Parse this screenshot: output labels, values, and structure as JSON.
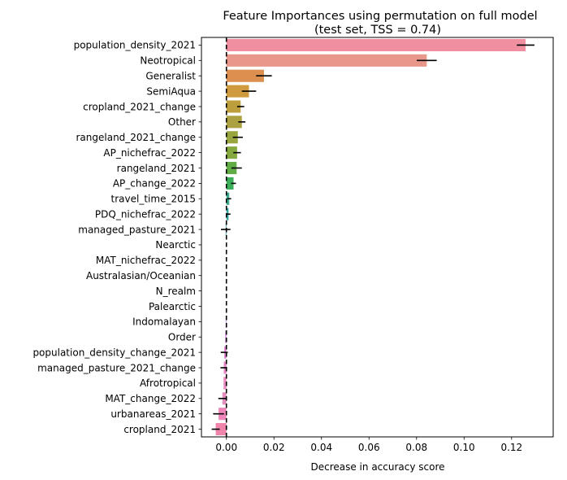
{
  "chart_data": {
    "type": "bar",
    "orientation": "horizontal",
    "title": "Feature Importances using permutation on full model",
    "subtitle": "(test set, TSS = 0.74)",
    "xlabel": "Decrease in accuracy score",
    "ylabel": "",
    "xlim": [
      -0.0105,
      0.1375
    ],
    "xticks": [
      0.0,
      0.02,
      0.04,
      0.06,
      0.08,
      0.1,
      0.12
    ],
    "xtick_labels": [
      "0.00",
      "0.02",
      "0.04",
      "0.06",
      "0.08",
      "0.10",
      "0.12"
    ],
    "reference_line": 0.0,
    "grid": false,
    "categories": [
      "population_density_2021",
      "Neotropical",
      "Generalist",
      "SemiAqua",
      "cropland_2021_change",
      "Other",
      "rangeland_2021_change",
      "AP_nichefrac_2022",
      "rangeland_2021",
      "AP_change_2022",
      "travel_time_2015",
      "PDQ_nichefrac_2022",
      "managed_pasture_2021",
      "Nearctic",
      "MAT_nichefrac_2022",
      "Australasian/Oceanian",
      "N_realm",
      "Palearctic",
      "Indomalayan",
      "Order",
      "population_density_change_2021",
      "managed_pasture_2021_change",
      "Afrotropical",
      "MAT_change_2022",
      "urbanareas_2021",
      "cropland_2021"
    ],
    "values": [
      0.1259,
      0.0843,
      0.0158,
      0.0095,
      0.006,
      0.0065,
      0.0048,
      0.0045,
      0.0043,
      0.003,
      0.0012,
      0.0009,
      -0.0003,
      0.0,
      0.0,
      0.0,
      0.0,
      0.0,
      -0.0003,
      -0.0005,
      -0.0009,
      -0.0011,
      -0.0012,
      -0.0017,
      -0.0033,
      -0.0045
    ],
    "errors": [
      0.0037,
      0.0042,
      0.0033,
      0.003,
      0.0015,
      0.0015,
      0.0021,
      0.0016,
      0.0022,
      0.001,
      0.0008,
      0.0008,
      0.002,
      0.0,
      0.0,
      0.0,
      0.0,
      0.0,
      0.0,
      0.0,
      0.0015,
      0.0014,
      0.0,
      0.0017,
      0.0023,
      0.0017
    ],
    "colors": [
      "#ef8fa0",
      "#e9978a",
      "#dc8f4f",
      "#cf9b3e",
      "#bd9e3c",
      "#aca140",
      "#99a53f",
      "#85a83f",
      "#62ac45",
      "#3bae5a",
      "#3aab8e",
      "#39a7a2",
      "#3ba4ad",
      "#3ea6bb",
      "#42a5d0",
      "#6aa3e5",
      "#8d9ce8",
      "#a996e8",
      "#c28ee6",
      "#d887e3",
      "#e07fd1",
      "#e586c7",
      "#ea8cc0",
      "#e48dbc",
      "#ef86b9",
      "#ef84ad"
    ]
  }
}
